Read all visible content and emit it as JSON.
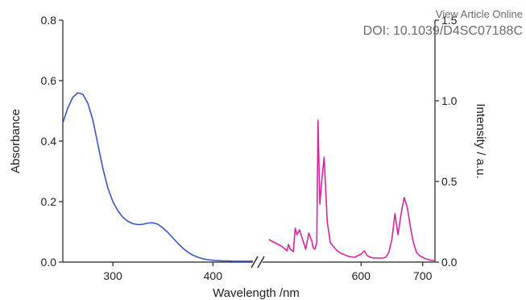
{
  "watermark": {
    "line1": "View Article Online",
    "line2": "DOI: 10.1039/D4SC07188C"
  },
  "chart_data": {
    "type": "line",
    "xlabel": "Wavelength /nm",
    "ylabel_left": "Absorbance",
    "ylabel_right": "Intensity / a.u.",
    "left_ylim": [
      0,
      0.8
    ],
    "right_ylim": [
      0,
      1.5
    ],
    "x_ticks": [
      "300",
      "400",
      "600",
      "700"
    ],
    "left_y_ticks": [
      "0.0",
      "0.2",
      "0.4",
      "0.6",
      "0.8"
    ],
    "right_y_ticks": [
      "0.0",
      "0.5",
      "1.0",
      "1.5"
    ],
    "axis_break": true,
    "colors": {
      "absorbance": "#3a55c8",
      "emission": "#d6269e",
      "axis": "#222222"
    },
    "segments": [
      {
        "x_range": [
          250,
          440
        ]
      },
      {
        "x_range": [
          440,
          720
        ]
      }
    ],
    "series": [
      {
        "axis": "left",
        "segment": 0,
        "color": "#3a55c8",
        "x": [
          250,
          255,
          260,
          265,
          270,
          275,
          280,
          285,
          290,
          295,
          300,
          305,
          310,
          315,
          320,
          325,
          330,
          335,
          340,
          345,
          350,
          355,
          360,
          365,
          370,
          375,
          380,
          385,
          390,
          395,
          400,
          405,
          410,
          415,
          420,
          425,
          430,
          435,
          440
        ],
        "y": [
          0.46,
          0.51,
          0.545,
          0.56,
          0.555,
          0.525,
          0.47,
          0.39,
          0.31,
          0.245,
          0.2,
          0.17,
          0.148,
          0.135,
          0.127,
          0.124,
          0.125,
          0.129,
          0.13,
          0.125,
          0.113,
          0.098,
          0.08,
          0.062,
          0.046,
          0.033,
          0.023,
          0.016,
          0.011,
          0.008,
          0.006,
          0.005,
          0.004,
          0.004,
          0.003,
          0.003,
          0.003,
          0.003,
          0.003
        ]
      },
      {
        "axis": "right",
        "segment": 1,
        "color": "#d6269e",
        "x": [
          450,
          460,
          470,
          475,
          480,
          482,
          485,
          490,
          493,
          496,
          500,
          505,
          510,
          515,
          520,
          522,
          525,
          528,
          530,
          533,
          536,
          540,
          545,
          550,
          560,
          565,
          570,
          580,
          590,
          595,
          600,
          605,
          610,
          615,
          620,
          625,
          630,
          635,
          640,
          645,
          650,
          655,
          660,
          665,
          670,
          675,
          680,
          685,
          690,
          695,
          700,
          705,
          710,
          715,
          720
        ],
        "y": [
          0.14,
          0.12,
          0.1,
          0.085,
          0.07,
          0.11,
          0.08,
          0.065,
          0.21,
          0.17,
          0.2,
          0.14,
          0.08,
          0.18,
          0.13,
          0.09,
          0.08,
          0.12,
          0.88,
          0.36,
          0.5,
          0.65,
          0.25,
          0.12,
          0.075,
          0.06,
          0.05,
          0.035,
          0.03,
          0.04,
          0.05,
          0.07,
          0.04,
          0.03,
          0.025,
          0.025,
          0.025,
          0.025,
          0.03,
          0.06,
          0.14,
          0.3,
          0.17,
          0.3,
          0.4,
          0.34,
          0.22,
          0.12,
          0.06,
          0.04,
          0.03,
          0.02,
          0.015,
          0.01,
          0.01
        ]
      }
    ]
  }
}
